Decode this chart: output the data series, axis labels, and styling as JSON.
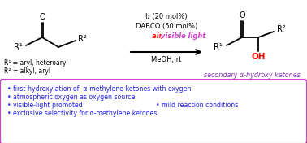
{
  "cond_line1": "I₂ (20 mol%)",
  "cond_line2": "DABCO (50 mol%)",
  "cond_line3_red": "air, ",
  "cond_line3_purple": "visible light",
  "cond_line4": "MeOH, rt",
  "r1_label": "R¹ = aryl, heteroaryl",
  "r2_label": "R² = alkyl, aryl",
  "product_label": "secondary α-hydroxy ketones",
  "bullet1": "• first hydroxylation of  α-methylene ketones with oxygen",
  "bullet2": "• atmospheric oxygen as oxygen source",
  "bullet3a": "• visible-light promoted",
  "bullet3b": "• mild reaction conditions",
  "bullet4": "• exclusive selectivity for α-methylene ketones",
  "box_border_color": "#cc44cc",
  "bullet_color": "#2222ee",
  "background": "#ffffff",
  "red_color": "#ff1111",
  "purple_color": "#cc44cc",
  "product_color": "#8833bb",
  "oh_color": "#ff0000",
  "black": "#000000"
}
